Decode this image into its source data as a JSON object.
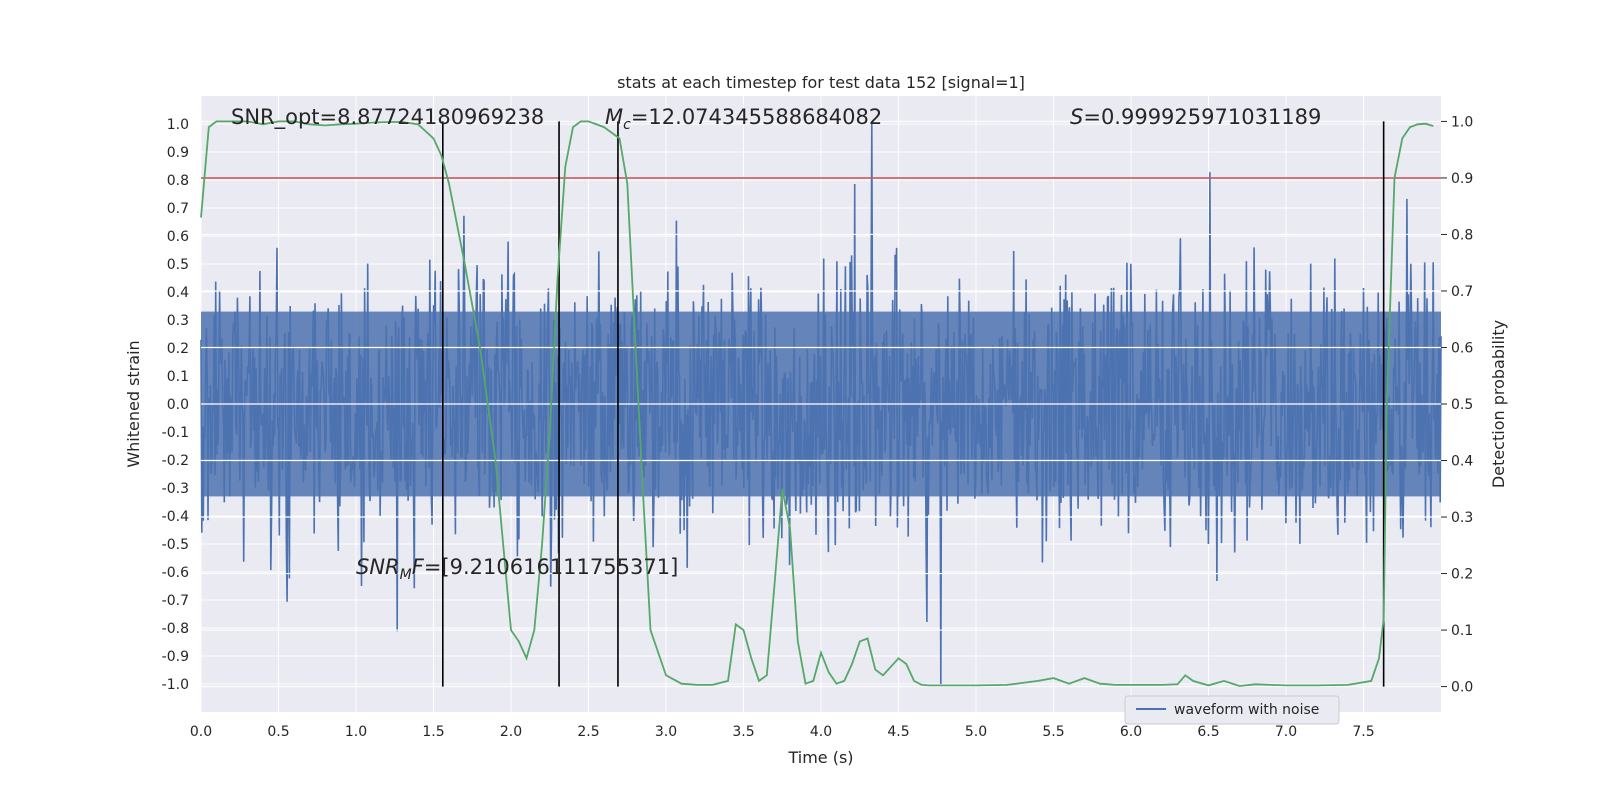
{
  "chart_data": {
    "type": "line",
    "title": "stats at each timestep for test data 152 [signal=1]",
    "xlabel": "Time (s)",
    "ylabel": "Whitened strain",
    "ylabel_right": "Detection probability",
    "xlim": [
      0.0,
      8.0
    ],
    "ylim": [
      -1.1,
      1.1
    ],
    "ylim_right": [
      -0.045,
      1.045
    ],
    "xticks": [
      "0.0",
      "0.5",
      "1.0",
      "1.5",
      "2.0",
      "2.5",
      "3.0",
      "3.5",
      "4.0",
      "4.5",
      "5.0",
      "5.5",
      "6.0",
      "6.5",
      "7.0",
      "7.5"
    ],
    "yticks": [
      "-1.0",
      "-0.9",
      "-0.8",
      "-0.7",
      "-0.6",
      "-0.5",
      "-0.4",
      "-0.3",
      "-0.2",
      "-0.1",
      "0.0",
      "0.1",
      "0.2",
      "0.3",
      "0.4",
      "0.5",
      "0.6",
      "0.7",
      "0.8",
      "0.9",
      "1.0"
    ],
    "yticks_right": [
      "0.0",
      "0.1",
      "0.2",
      "0.3",
      "0.4",
      "0.5",
      "0.6",
      "0.7",
      "0.8",
      "0.9",
      "1.0"
    ],
    "grid": true,
    "threshold": {
      "value": 0.9,
      "axis": "right",
      "color": "#c44e52"
    },
    "vlines": [
      1.56,
      2.31,
      2.69,
      7.63
    ],
    "series": [
      {
        "name": "waveform with noise",
        "color": "#4c72b0",
        "axis": "left",
        "kind": "whitened noise, dense oscillation filling approx ±0.3 to ±1.0",
        "x_range": [
          0.0,
          8.0
        ],
        "envelope": 1.0,
        "n_points": 1600
      },
      {
        "name": "detection probability",
        "color": "#55a868",
        "axis": "right",
        "x": [
          0.0,
          0.05,
          0.1,
          0.2,
          0.3,
          0.4,
          0.5,
          0.6,
          0.7,
          0.8,
          0.9,
          1.0,
          1.1,
          1.2,
          1.3,
          1.4,
          1.5,
          1.55,
          1.6,
          1.7,
          1.8,
          1.9,
          2.0,
          2.05,
          2.1,
          2.15,
          2.2,
          2.25,
          2.3,
          2.35,
          2.4,
          2.45,
          2.5,
          2.6,
          2.7,
          2.75,
          2.8,
          2.85,
          2.9,
          3.0,
          3.1,
          3.2,
          3.3,
          3.4,
          3.45,
          3.5,
          3.55,
          3.6,
          3.65,
          3.7,
          3.75,
          3.8,
          3.85,
          3.9,
          3.95,
          4.0,
          4.05,
          4.1,
          4.15,
          4.2,
          4.25,
          4.3,
          4.35,
          4.4,
          4.45,
          4.5,
          4.55,
          4.6,
          4.65,
          4.7,
          4.75,
          4.8,
          5.0,
          5.2,
          5.4,
          5.5,
          5.6,
          5.7,
          5.8,
          5.9,
          6.0,
          6.2,
          6.3,
          6.35,
          6.4,
          6.5,
          6.6,
          6.7,
          6.8,
          6.9,
          7.0,
          7.2,
          7.4,
          7.55,
          7.6,
          7.63,
          7.65,
          7.7,
          7.75,
          7.8,
          7.85,
          7.9,
          7.95
        ],
        "y": [
          0.83,
          0.99,
          1.0,
          1.0,
          1.0,
          0.995,
          1.0,
          1.0,
          0.995,
          0.993,
          0.995,
          0.996,
          0.998,
          0.999,
          0.999,
          0.995,
          0.97,
          0.94,
          0.89,
          0.75,
          0.6,
          0.4,
          0.1,
          0.08,
          0.05,
          0.1,
          0.25,
          0.45,
          0.72,
          0.92,
          0.99,
          1.0,
          1.0,
          0.99,
          0.97,
          0.89,
          0.62,
          0.35,
          0.1,
          0.02,
          0.005,
          0.003,
          0.003,
          0.01,
          0.11,
          0.1,
          0.05,
          0.01,
          0.02,
          0.18,
          0.35,
          0.28,
          0.08,
          0.005,
          0.01,
          0.06,
          0.025,
          0.005,
          0.01,
          0.04,
          0.08,
          0.085,
          0.03,
          0.02,
          0.035,
          0.05,
          0.04,
          0.01,
          0.003,
          0.002,
          0.002,
          0.002,
          0.002,
          0.003,
          0.01,
          0.015,
          0.005,
          0.015,
          0.005,
          0.003,
          0.003,
          0.003,
          0.004,
          0.02,
          0.01,
          0.002,
          0.01,
          0.001,
          0.004,
          0.003,
          0.002,
          0.002,
          0.003,
          0.01,
          0.05,
          0.12,
          0.5,
          0.9,
          0.97,
          0.99,
          0.995,
          0.996,
          0.992
        ]
      }
    ],
    "annotations": [
      {
        "text": "SNR_opt=8.87724180969238"
      },
      {
        "text": "M_c=12.074345588684082",
        "symbol": "M",
        "sub": "c",
        "rest": "=12.074345588684082"
      },
      {
        "text": "S=0.999925971031189",
        "symbol": "S",
        "rest": "=0.999925971031189"
      },
      {
        "text": "SNR_MF=[9.210616111755371]",
        "symbol": "SNR",
        "sub": "M",
        "mid": "F",
        "rest": "=[9.210616111755371]"
      }
    ],
    "legend": {
      "placement": "bottom-right",
      "entries": [
        "waveform with noise"
      ]
    }
  }
}
